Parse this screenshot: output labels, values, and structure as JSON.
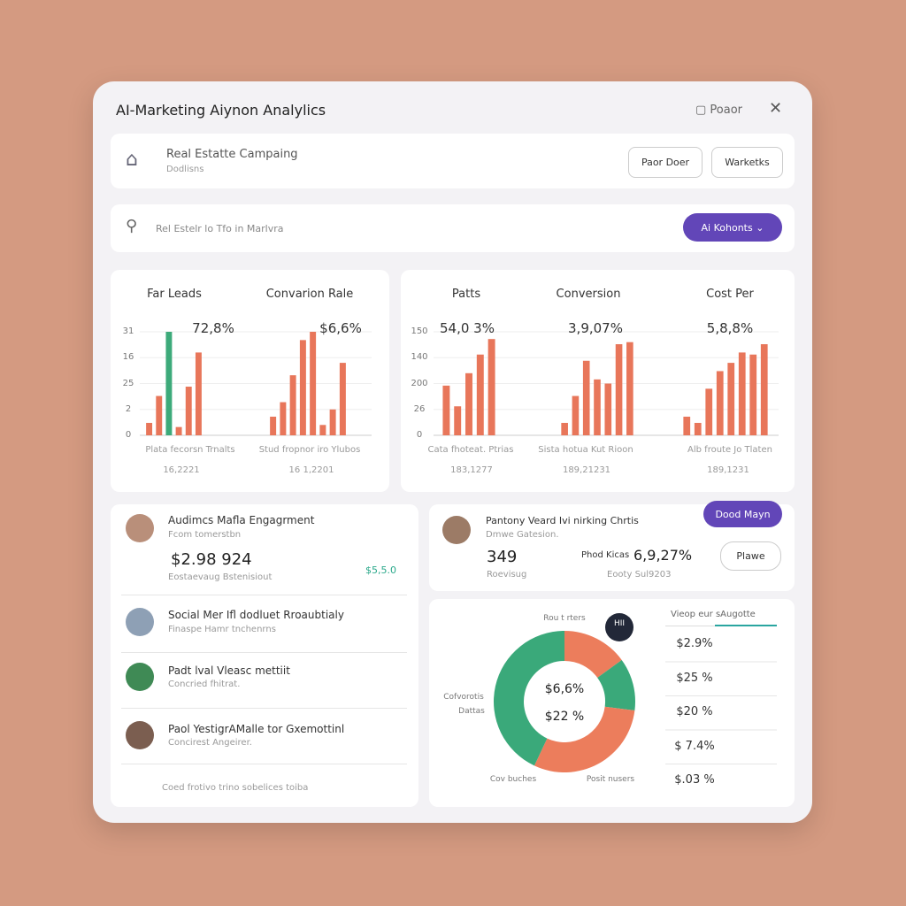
{
  "header": {
    "title": "AI-Marketing Aiynon Analylics",
    "action": "Poaor"
  },
  "campaign": {
    "title": "Real Estatte Campaing",
    "subtitle": "Dodlisns",
    "buttons": [
      "Paor Doer",
      "Warketks"
    ]
  },
  "search": {
    "placeholder": "Rel Estelr lo Tfo in Marlvra",
    "button": "Ai Kohonts"
  },
  "chart_data": [
    {
      "type": "bar",
      "title": "Far Leads",
      "headline": "72,8%",
      "footer": "Plata fecorsn Trnalts",
      "footer_value": "16,2221",
      "values": [
        12,
        38,
        100,
        8,
        47,
        80
      ],
      "colors": [
        "#e8765a",
        "#e8765a",
        "#3daa7a",
        "#e8765a",
        "#e8765a",
        "#e8765a"
      ],
      "ylim": [
        0,
        100
      ],
      "yticks": [
        0,
        {
          "value": 25,
          "label": "2"
        },
        {
          "value": 50,
          "label": "25"
        },
        {
          "value": 75,
          "label": "16"
        },
        {
          "value": 100,
          "label": "31"
        }
      ],
      "grid": true
    },
    {
      "type": "bar",
      "title": "Convarion Rale",
      "headline": "$6,6%",
      "footer": "Stud fropnor iro Ylubos",
      "footer_value": "16 1,2201",
      "values": [
        18,
        32,
        58,
        92,
        100,
        10,
        25,
        70
      ],
      "colors": [
        "#e8765a",
        "#e8765a",
        "#e8765a",
        "#e8765a",
        "#e8765a",
        "#e8765a",
        "#e8765a",
        "#e8765a"
      ],
      "ylim": [
        0,
        100
      ]
    },
    {
      "type": "bar",
      "title": "Patts",
      "headline": "54,0 3%",
      "footer": "Cata fhoteat. Ptrias",
      "footer_value": "183,1277",
      "values": [
        48,
        28,
        60,
        78,
        93
      ],
      "colors": [
        "#e8765a",
        "#e8765a",
        "#e8765a",
        "#e8765a",
        "#e8765a"
      ],
      "ylim": [
        0,
        100
      ],
      "yticks": [
        0,
        {
          "value": 25,
          "label": "26"
        },
        {
          "value": 50,
          "label": "200"
        },
        {
          "value": 75,
          "label": "140"
        },
        {
          "value": 100,
          "label": "150"
        }
      ],
      "grid": true
    },
    {
      "type": "bar",
      "title": "Conversion",
      "headline": "3,9,07%",
      "footer": "Sista hotua Kut Rioon",
      "footer_value": "189,21231",
      "values": [
        12,
        38,
        72,
        54,
        50,
        88,
        90
      ],
      "colors": [
        "#e8765a",
        "#e8765a",
        "#e8765a",
        "#e8765a",
        "#e8765a",
        "#e8765a",
        "#e8765a"
      ],
      "ylim": [
        0,
        100
      ]
    },
    {
      "type": "bar",
      "title": "Cost Per",
      "headline": "5,8,8%",
      "footer": "Alb froute Jo Tlaten",
      "footer_value": "189,1231",
      "values": [
        18,
        12,
        45,
        62,
        70,
        80,
        78,
        88
      ],
      "colors": [
        "#e8765a",
        "#e8765a",
        "#e8765a",
        "#e8765a",
        "#e8765a",
        "#e8765a",
        "#e8765a",
        "#e8765a"
      ],
      "ylim": [
        0,
        100
      ]
    },
    {
      "type": "pie",
      "values": [
        15,
        12,
        30,
        43
      ],
      "colors": [
        "#ec7d5c",
        "#3aa97a",
        "#ec7d5c",
        "#3aa97a"
      ],
      "center_labels": [
        "$6,6%",
        "$22 %"
      ],
      "annotations": [
        "Rou t rters",
        "HII",
        "Cofvorotis",
        "Dattas",
        "Cov buches",
        "Posit nusers"
      ]
    }
  ],
  "engagement": {
    "items": [
      {
        "title": "Audimcs Mafla Engagrment",
        "subtitle": "Fcom tomerstbn"
      },
      {
        "title": "Social Mer Ifl dodluet Rroaubtialy",
        "subtitle": "Finaspe Hamr tnchenrns"
      },
      {
        "title": "Padt lval Vleasc mettiit",
        "subtitle": "Concried fhitrat."
      },
      {
        "title": "Paol YestigrAMalle tor Gxemottinl",
        "subtitle": "Concirest Angeirer."
      }
    ],
    "value": "$2.98 924",
    "value_note": "Eostaevaug Bstenisiout",
    "badge": "$5,5.0",
    "footer": "Coed frotivo trino sobelices toiba"
  },
  "summary": {
    "title": "Pantony Veard Ivi nirking Chrtis",
    "subtitle": "Dmwe Gatesion.",
    "count": "349",
    "count_label": "Roevisug",
    "rate_label": "Phod Kicas",
    "rate": "6,9,27%",
    "rate_note": "Eooty Sul9203",
    "buttons": [
      "Dood Mayn",
      "Plawe"
    ]
  },
  "stats": {
    "title": "Vieop eur sAugotte",
    "items": [
      "$2.9%",
      "$25 %",
      "$20 %",
      "$ 7.4%",
      "$.03 %"
    ]
  }
}
